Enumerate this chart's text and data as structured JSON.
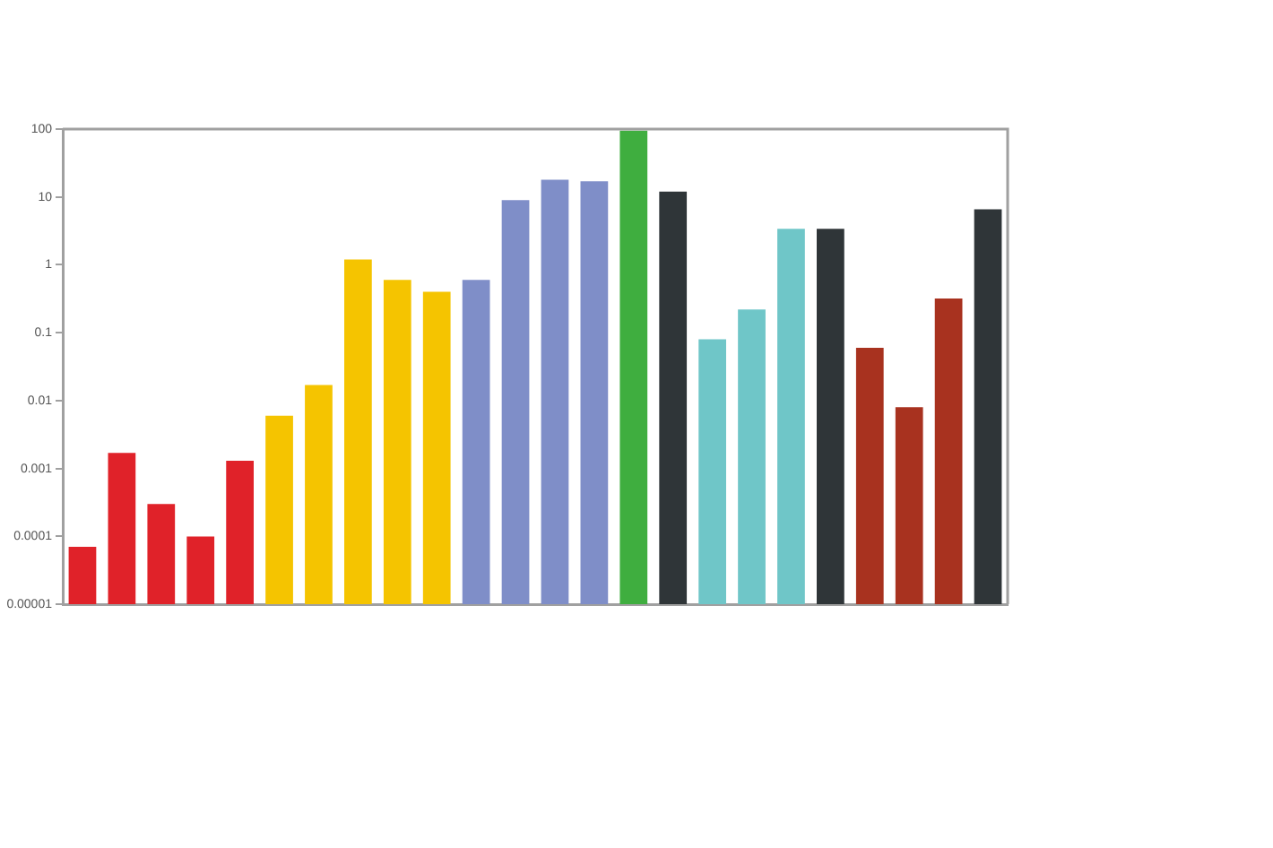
{
  "chart_data": {
    "type": "bar",
    "categories": [
      null,
      null,
      null,
      null,
      null,
      null,
      null,
      null,
      null,
      null,
      null,
      null,
      null,
      null,
      null,
      null,
      null,
      null,
      null,
      null,
      null,
      null,
      null,
      null
    ],
    "values": [
      7e-05,
      0.0017,
      0.0003,
      0.0001,
      0.0013,
      0.006,
      0.017,
      1.2,
      0.6,
      0.4,
      0.6,
      9,
      18,
      17,
      95,
      12,
      0.08,
      0.22,
      3.4,
      3.4,
      0.06,
      0.008,
      0.32,
      6.6
    ],
    "colors": [
      "#e02229",
      "#e02229",
      "#e02229",
      "#e02229",
      "#e02229",
      "#f5c400",
      "#f5c400",
      "#f5c400",
      "#f5c400",
      "#f5c400",
      "#7f8ec8",
      "#7f8ec8",
      "#7f8ec8",
      "#7f8ec8",
      "#3fae3f",
      "#2f3538",
      "#6fc6c8",
      "#6fc6c8",
      "#6fc6c8",
      "#2f3538",
      "#a8321f",
      "#a8321f",
      "#a8321f",
      "#2f3538"
    ],
    "ylim": [
      1e-05,
      100
    ],
    "yticks": [
      100,
      10,
      1,
      0.1,
      0.01,
      0.001,
      0.0001,
      {
        "value": 1e-05,
        "label": "0.00001"
      }
    ],
    "log": true,
    "grid": false,
    "legend": false
  }
}
